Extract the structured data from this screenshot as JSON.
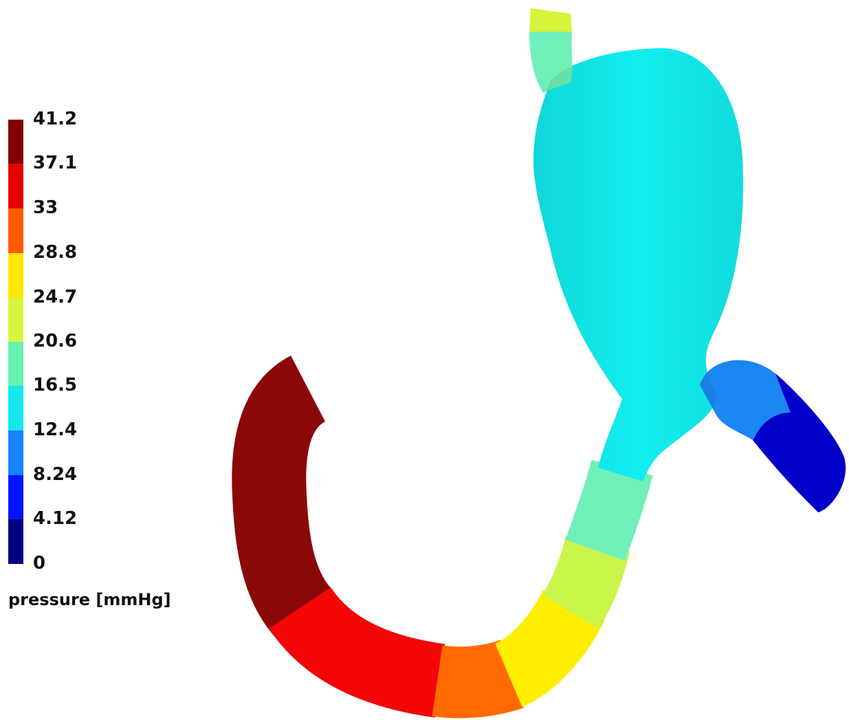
{
  "legend": {
    "title": "pressure [mmHg]",
    "ticks": [
      "41.2",
      "37.1",
      "33",
      "28.8",
      "24.7",
      "20.6",
      "16.5",
      "12.4",
      "8.24",
      "4.12",
      "0"
    ],
    "tick_values": [
      41.2,
      37.1,
      33,
      28.8,
      24.7,
      20.6,
      16.5,
      12.4,
      8.24,
      4.12,
      0
    ],
    "bands": [
      {
        "from": 37.1,
        "to": 41.2,
        "color": "#7f0000"
      },
      {
        "from": 33,
        "to": 37.1,
        "color": "#e50000"
      },
      {
        "from": 28.8,
        "to": 33,
        "color": "#ff5a00"
      },
      {
        "from": 24.7,
        "to": 28.8,
        "color": "#ffe600"
      },
      {
        "from": 20.6,
        "to": 24.7,
        "color": "#d8f53c"
      },
      {
        "from": 16.5,
        "to": 20.6,
        "color": "#66f2b0"
      },
      {
        "from": 12.4,
        "to": 16.5,
        "color": "#17e6f0"
      },
      {
        "from": 8.24,
        "to": 12.4,
        "color": "#1a82ff"
      },
      {
        "from": 4.12,
        "to": 8.24,
        "color": "#0014ff"
      },
      {
        "from": 0,
        "to": 4.12,
        "color": "#00007f"
      }
    ]
  },
  "model": {
    "colors": {
      "stomach": "#12eef0",
      "duodenum_dark": "#8b0808",
      "duodenum_red": "#f20606",
      "duodenum_orange": "#ff6a00",
      "duodenum_yellow": "#ffee00",
      "duodenum_lime": "#c9f44a",
      "duodenum_mint": "#6ff0b8",
      "branch_blue": "#1c86f2",
      "branch_dark_blue": "#0000c8",
      "esophagus_top": "#d9f23a"
    }
  }
}
